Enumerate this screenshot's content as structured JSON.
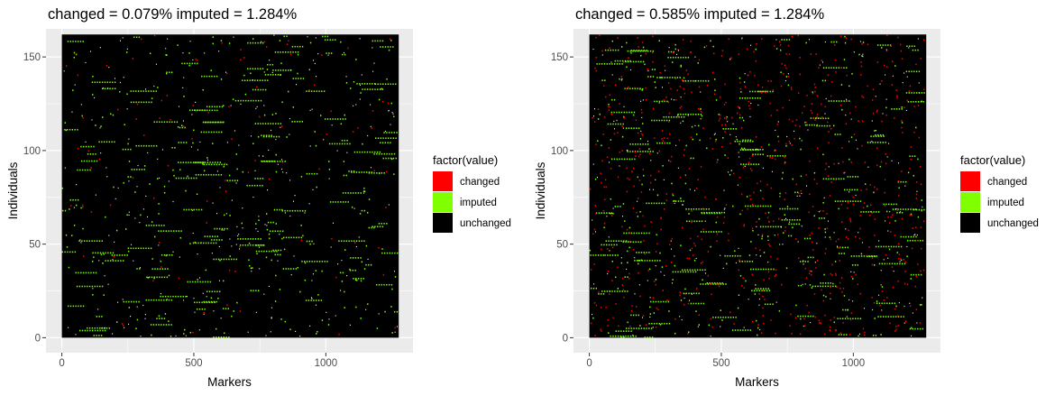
{
  "chart_data": [
    {
      "type": "heatmap",
      "title": "changed = 0.079% imputed = 1.284%",
      "xlabel": "Markers",
      "ylabel": "Individuals",
      "xlim": [
        -60,
        1330
      ],
      "ylim": [
        -8,
        165
      ],
      "x_extent": [
        0,
        1276
      ],
      "y_extent": [
        0,
        162
      ],
      "x_ticks": [
        0,
        500,
        1000
      ],
      "x_tick_labels": [
        "0",
        "500",
        "1000"
      ],
      "y_ticks": [
        0,
        50,
        100,
        150
      ],
      "y_tick_labels": [
        "0",
        "50",
        "100",
        "150"
      ],
      "grid": true,
      "legend_position": "right",
      "legend": {
        "title": "factor(value)",
        "entries": [
          {
            "label": "changed",
            "color": "#ff0000"
          },
          {
            "label": "imputed",
            "color": "#7fff00"
          },
          {
            "label": "unchanged",
            "color": "#000000"
          }
        ]
      },
      "series": [
        {
          "name": "changed",
          "percent": 0.079
        },
        {
          "name": "imputed",
          "percent": 1.284
        },
        {
          "name": "unchanged"
        }
      ]
    },
    {
      "type": "heatmap",
      "title": "changed = 0.585% imputed = 1.284%",
      "xlabel": "Markers",
      "ylabel": "Individuals",
      "xlim": [
        -60,
        1330
      ],
      "ylim": [
        -8,
        165
      ],
      "x_extent": [
        0,
        1276
      ],
      "y_extent": [
        0,
        162
      ],
      "x_ticks": [
        0,
        500,
        1000
      ],
      "x_tick_labels": [
        "0",
        "500",
        "1000"
      ],
      "y_ticks": [
        0,
        50,
        100,
        150
      ],
      "y_tick_labels": [
        "0",
        "50",
        "100",
        "150"
      ],
      "grid": true,
      "legend_position": "right",
      "legend": {
        "title": "factor(value)",
        "entries": [
          {
            "label": "changed",
            "color": "#ff0000"
          },
          {
            "label": "imputed",
            "color": "#7fff00"
          },
          {
            "label": "unchanged",
            "color": "#000000"
          }
        ]
      },
      "series": [
        {
          "name": "changed",
          "percent": 0.585
        },
        {
          "name": "imputed",
          "percent": 1.284
        },
        {
          "name": "unchanged"
        }
      ]
    }
  ]
}
